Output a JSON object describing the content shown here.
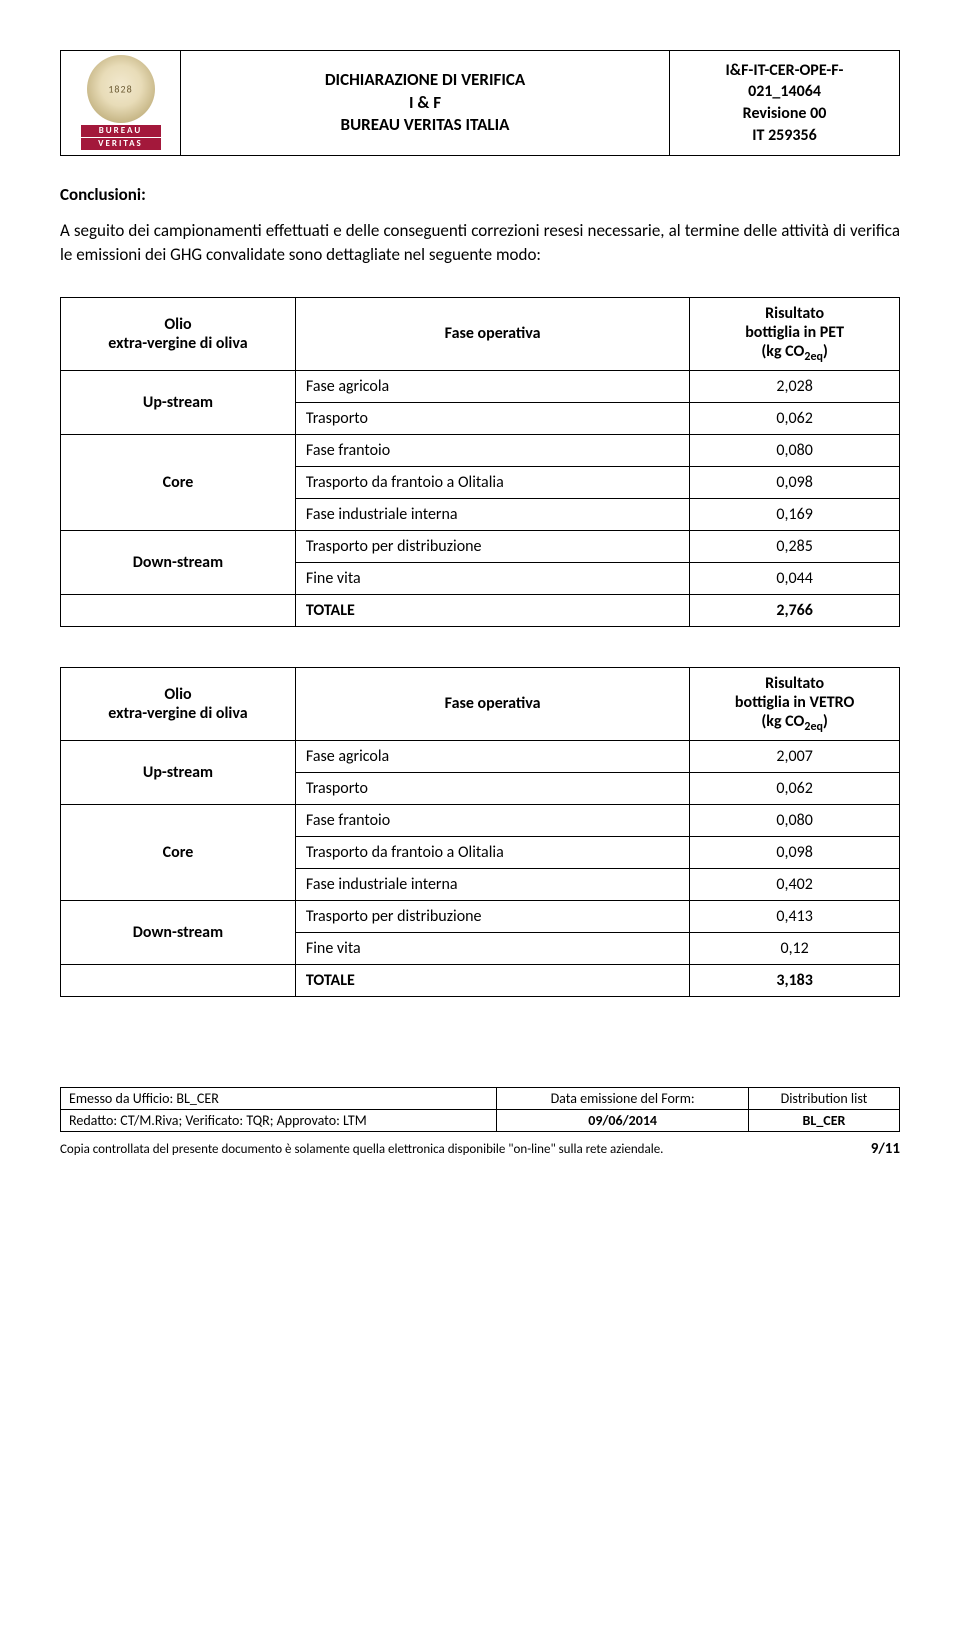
{
  "colors": {
    "logo_bar_bg": "#a3183b",
    "text": "#000000",
    "background": "#ffffff",
    "border": "#000000"
  },
  "logo": {
    "bar1": "BUREAU",
    "bar2": "VERITAS"
  },
  "header": {
    "title_line1": "DICHIARAZIONE DI VERIFICA",
    "title_line2": "I & F",
    "title_line3": "BUREAU VERITAS ITALIA",
    "ref_line1": "I&F-IT-CER-OPE-F-",
    "ref_line2": "021_14064",
    "ref_line3": "Revisione 00",
    "ref_line4": "IT 259356"
  },
  "section": {
    "heading": "Conclusioni:",
    "paragraph": "A seguito dei campionamenti effettuati e delle conseguenti correzioni resesi necessarie, al termine delle attività di verifica le emissioni dei GHG convalidate sono dettagliate nel seguente modo:"
  },
  "table1": {
    "head_product_l1": "Olio",
    "head_product_l2": "extra-vergine di oliva",
    "head_phase": "Fase operativa",
    "head_result_l1": "Risultato",
    "head_result_l2_prefix": "bottiglia in PET",
    "head_result_l3_prefix": "(kg CO",
    "head_result_l3_sub": "2eq",
    "head_result_l3_suffix": ")",
    "up_label": "Up-stream",
    "core_label": "Core",
    "down_label": "Down-stream",
    "rows": [
      {
        "phase": "Fase agricola",
        "value": "2,028"
      },
      {
        "phase": "Trasporto",
        "value": "0,062"
      },
      {
        "phase": "Fase frantoio",
        "value": "0,080"
      },
      {
        "phase": "Trasporto da frantoio a Olitalia",
        "value": "0,098"
      },
      {
        "phase": "Fase industriale interna",
        "value": "0,169"
      },
      {
        "phase": "Trasporto per distribuzione",
        "value": "0,285"
      },
      {
        "phase": "Fine vita",
        "value": "0,044"
      }
    ],
    "total_label": "TOTALE",
    "total_value": "2,766"
  },
  "table2": {
    "head_product_l1": "Olio",
    "head_product_l2": "extra-vergine di oliva",
    "head_phase": "Fase operativa",
    "head_result_l1": "Risultato",
    "head_result_l2_prefix": "bottiglia in VETRO",
    "head_result_l3_prefix": "(kg CO",
    "head_result_l3_sub": "2eq",
    "head_result_l3_suffix": ")",
    "up_label": "Up-stream",
    "core_label": "Core",
    "down_label": "Down-stream",
    "rows": [
      {
        "phase": "Fase agricola",
        "value": "2,007"
      },
      {
        "phase": "Trasporto",
        "value": "0,062"
      },
      {
        "phase": "Fase frantoio",
        "value": "0,080"
      },
      {
        "phase": "Trasporto da frantoio a Olitalia",
        "value": "0,098"
      },
      {
        "phase": "Fase industriale interna",
        "value": "0,402"
      },
      {
        "phase": "Trasporto per distribuzione",
        "value": "0,413"
      },
      {
        "phase": "Fine vita",
        "value": "0,12"
      }
    ],
    "total_label": "TOTALE",
    "total_value": "3,183"
  },
  "footer": {
    "emesso": "Emesso da Ufficio: BL_CER",
    "redatto": "Redatto: CT/M.Riva; Verificato: TQR; Approvato: LTM",
    "data_label": "Data emissione del Form:",
    "data_value": "09/06/2014",
    "dist_label": "Distribution list",
    "dist_value": "BL_CER",
    "note": "Copia controllata del presente documento è solamente quella elettronica disponibile \"on-line\" sulla rete aziendale.",
    "page": "9/11"
  }
}
